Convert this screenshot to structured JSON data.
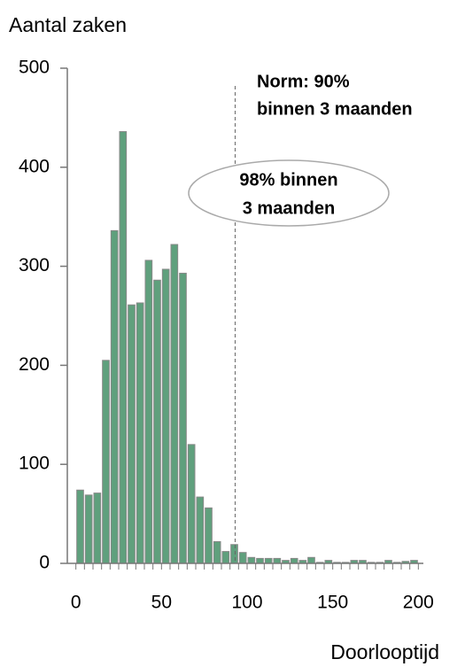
{
  "chart_data": {
    "type": "histogram",
    "title": "Aantal zaken",
    "x_label": "Doorlooptijd",
    "bins": [
      0,
      5,
      10,
      15,
      20,
      25,
      30,
      35,
      40,
      45,
      50,
      55,
      60,
      65,
      70,
      75,
      80,
      85,
      90,
      95,
      100,
      105,
      110,
      115,
      120,
      125,
      130,
      135,
      140,
      145,
      150,
      155,
      160,
      165,
      170,
      175,
      180,
      185,
      190,
      195,
      200
    ],
    "values": [
      74,
      69,
      71,
      205,
      336,
      436,
      261,
      263,
      306,
      286,
      297,
      322,
      293,
      120,
      67,
      56,
      22,
      12,
      19,
      11,
      6,
      5,
      5,
      5,
      3,
      5,
      3,
      6,
      1,
      3,
      1,
      1,
      3,
      3,
      1,
      1,
      3,
      1,
      2,
      3
    ],
    "color": "#5fa07d",
    "xlim": [
      -5,
      205
    ],
    "xticks": [
      0,
      50,
      100,
      150,
      200
    ],
    "ylim": [
      0,
      500
    ],
    "yticks": [
      0,
      100,
      200,
      300,
      400,
      500
    ],
    "norm_line": 93,
    "annotations": [
      {
        "lines": [
          "Norm: 90%",
          "binnen 3 maanden"
        ]
      },
      {
        "lines": [
          "98% binnen",
          "3 maanden"
        ]
      }
    ]
  }
}
